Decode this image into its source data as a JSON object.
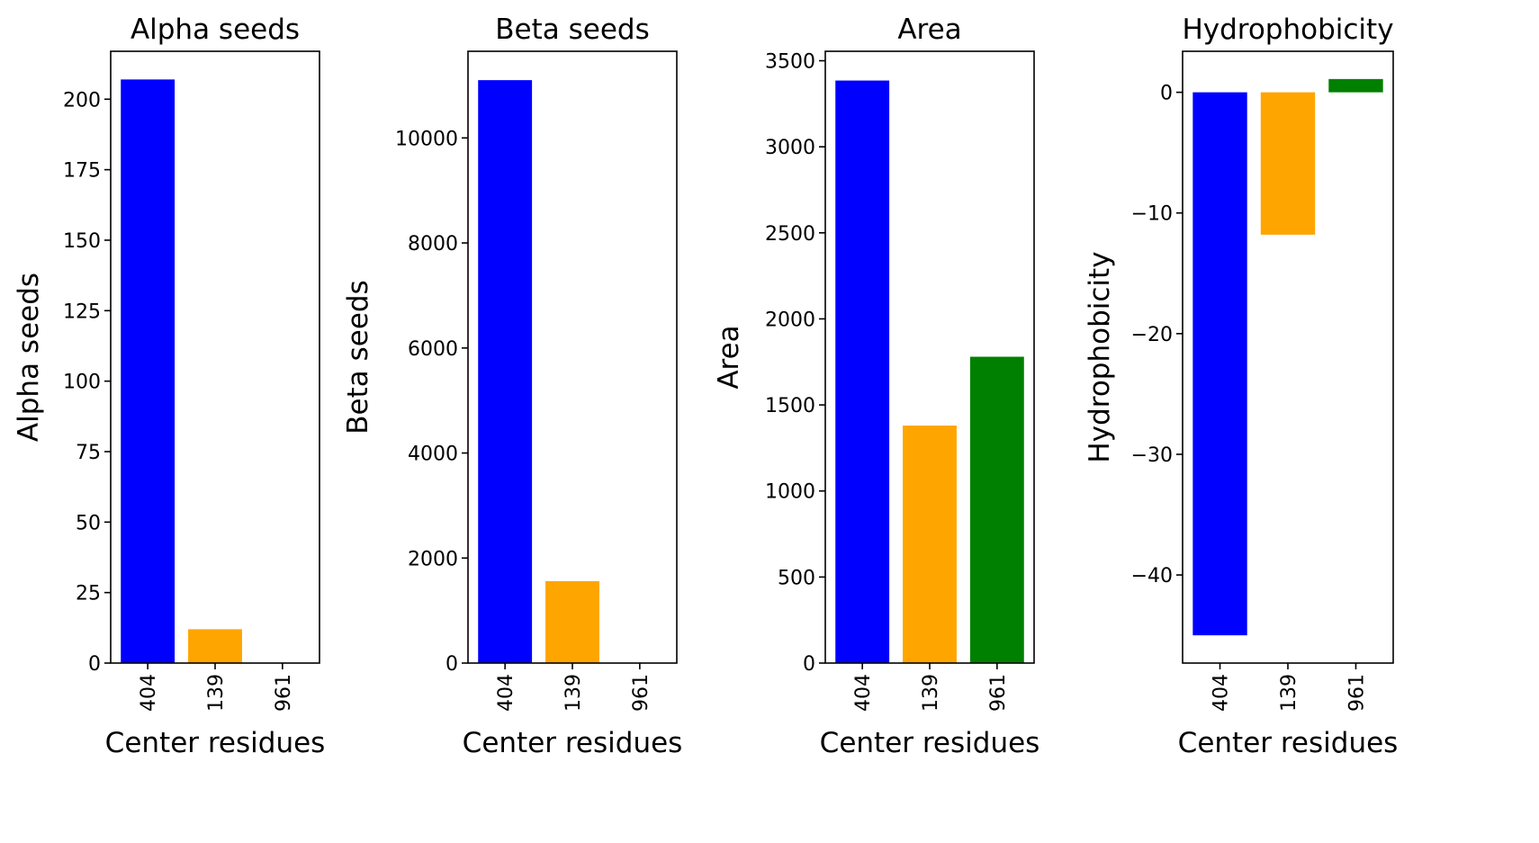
{
  "chart_data": [
    {
      "type": "bar",
      "title": "Alpha seeds",
      "xlabel": "Center residues",
      "ylabel": "Alpha seeds",
      "categories": [
        "404",
        "139",
        "961"
      ],
      "values": [
        207,
        12,
        0
      ],
      "colors": [
        "#0000ff",
        "#ffa500",
        "#008000"
      ],
      "ylim": [
        0,
        217
      ],
      "yticks": [
        0,
        25,
        50,
        75,
        100,
        125,
        150,
        175,
        200
      ],
      "grid": false
    },
    {
      "type": "bar",
      "title": "Beta seeds",
      "xlabel": "Center residues",
      "ylabel": "Beta seeds",
      "categories": [
        "404",
        "139",
        "961"
      ],
      "values": [
        11100,
        1560,
        0
      ],
      "colors": [
        "#0000ff",
        "#ffa500",
        "#008000"
      ],
      "ylim": [
        0,
        11650
      ],
      "yticks": [
        0,
        2000,
        4000,
        6000,
        8000,
        10000
      ],
      "grid": false
    },
    {
      "type": "bar",
      "title": "Area",
      "xlabel": "Center residues",
      "ylabel": "Area",
      "categories": [
        "404",
        "139",
        "961"
      ],
      "values": [
        3385,
        1380,
        1780
      ],
      "colors": [
        "#0000ff",
        "#ffa500",
        "#008000"
      ],
      "ylim": [
        0,
        3555
      ],
      "yticks": [
        0,
        500,
        1000,
        1500,
        2000,
        2500,
        3000,
        3500
      ],
      "grid": false
    },
    {
      "type": "bar",
      "title": "Hydrophobicity",
      "xlabel": "Center residues",
      "ylabel": "Hydrophobicity",
      "categories": [
        "404",
        "139",
        "961"
      ],
      "values": [
        -45,
        -11.8,
        1.1
      ],
      "colors": [
        "#0000ff",
        "#ffa500",
        "#008000"
      ],
      "ylim": [
        -47.3,
        3.4
      ],
      "yticks": [
        -40,
        -30,
        -20,
        -10,
        0
      ],
      "ytick_labels": [
        "−40",
        "−30",
        "−20",
        "−10",
        "0"
      ],
      "grid": false
    }
  ]
}
